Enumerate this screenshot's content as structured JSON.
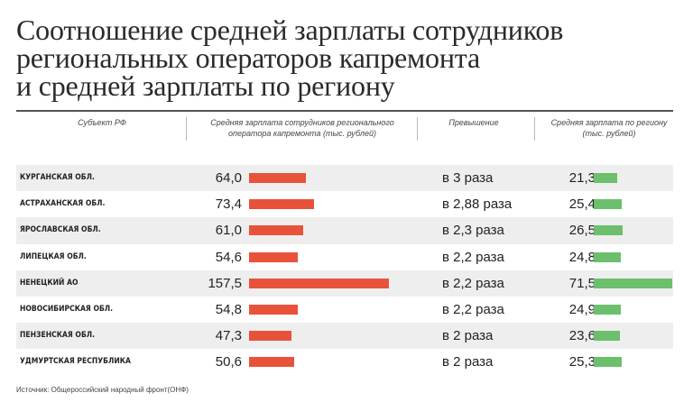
{
  "title_lines": [
    "Соотношение средней зарплаты сотрудников",
    "региональных операторов капремонта",
    "и средней зарплаты по региону"
  ],
  "headers": {
    "subject": "Субъект РФ",
    "operator_salary": "Средняя зарплата сотрудников регионального оператора капремонта (тыс. рублей)",
    "excess": "Превышение",
    "region_salary": "Средняя зарплата по региону (тыс. рублей)"
  },
  "colors": {
    "operator_bar": "#e8523b",
    "region_bar": "#6cbf6c",
    "row_shade": "#eeeeee"
  },
  "chart_data": {
    "type": "bar",
    "categories": [
      "Курганская обл.",
      "Астраханская обл.",
      "Ярославская обл.",
      "Липецкая обл.",
      "Ненецкий АО",
      "Новосибирская обл.",
      "Пензенская обл.",
      "Удмуртская республика"
    ],
    "series": [
      {
        "name": "Средняя зарплата сотрудников регионального оператора капремонта (тыс. рублей)",
        "values": [
          64.0,
          73.4,
          61.0,
          54.6,
          157.5,
          54.8,
          47.3,
          50.6
        ],
        "labels": [
          "64,0",
          "73,4",
          "61,0",
          "54,6",
          "157,5",
          "54,8",
          "47,3",
          "50,6"
        ]
      },
      {
        "name": "Средняя зарплата по региону (тыс. рублей)",
        "values": [
          21.3,
          25.4,
          26.5,
          24.8,
          71.5,
          24.9,
          23.6,
          25.3
        ],
        "labels": [
          "21,3",
          "25,4",
          "26,5",
          "24,8",
          "71,5",
          "24,9",
          "23,6",
          "25,3"
        ]
      }
    ],
    "excess": [
      "в 3 раза",
      "в 2,88 раза",
      "в 2,3 раза",
      "в 2,2 раза",
      "в 2,2 раза",
      "в 2,2 раза",
      "в 2 раза",
      "в 2 раза"
    ]
  },
  "source": "Источник: Общероссийский народный фронт(ОНФ)"
}
